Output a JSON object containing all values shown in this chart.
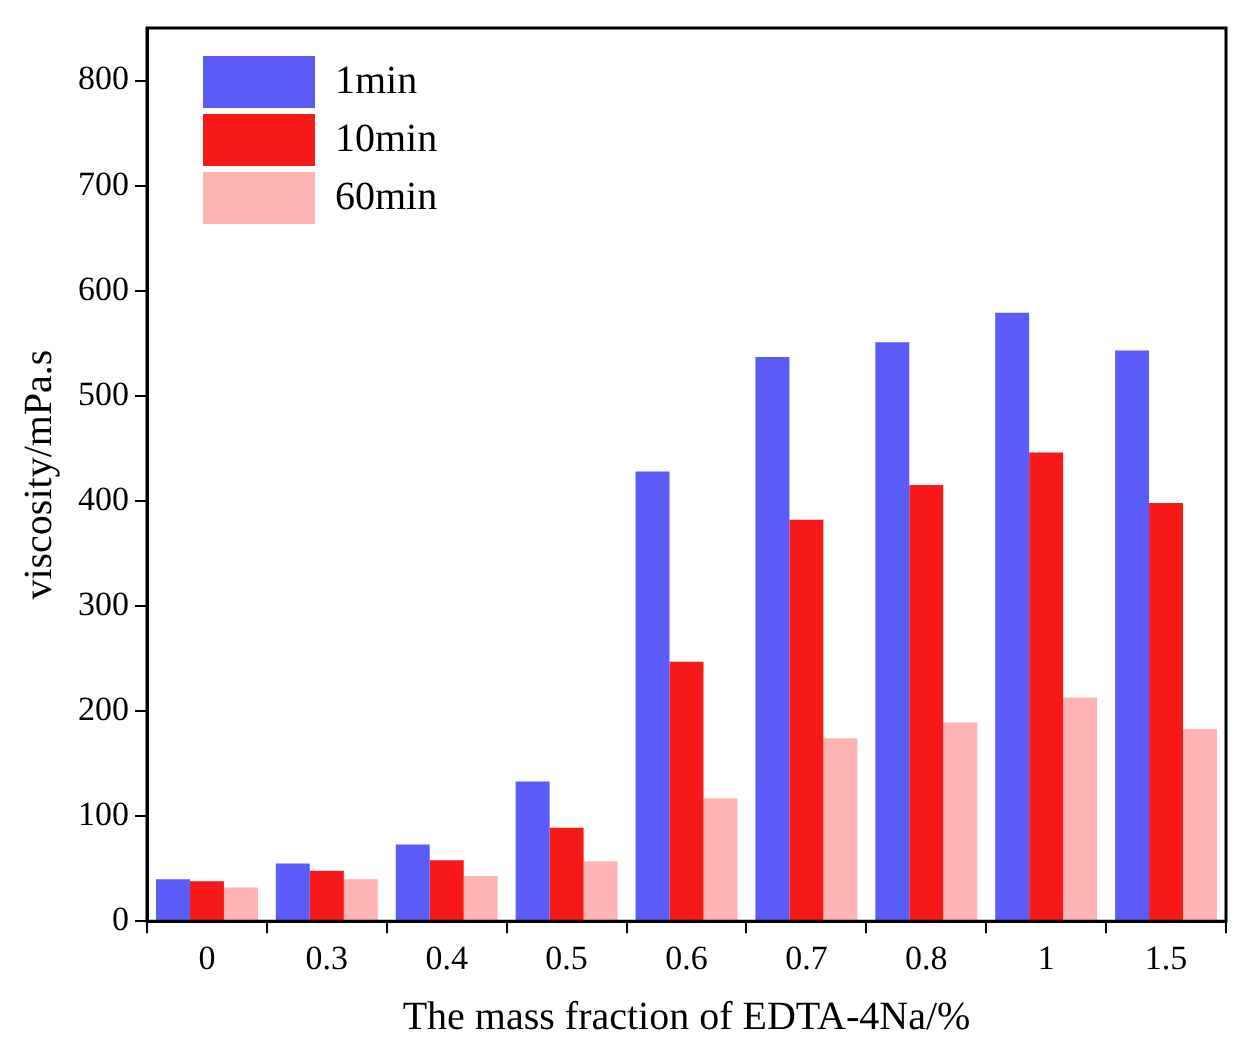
{
  "chart_data": {
    "type": "bar",
    "xlabel": "The mass fraction of EDTA-4Na/%",
    "ylabel": "viscosity/mPa.s",
    "categories": [
      "0",
      "0.3",
      "0.4",
      "0.5",
      "0.6",
      "0.7",
      "0.8",
      "1",
      "1.5"
    ],
    "series": [
      {
        "name": "1min",
        "color": "#5b5bf7",
        "values": [
          40,
          55,
          73,
          133,
          428,
          537,
          551,
          579,
          543
        ]
      },
      {
        "name": "10min",
        "color": "#f71818",
        "values": [
          38,
          48,
          58,
          89,
          247,
          382,
          415,
          446,
          398
        ]
      },
      {
        "name": "60min",
        "color": "#ffb3b3",
        "values": [
          32,
          40,
          43,
          57,
          117,
          174,
          189,
          213,
          183
        ]
      }
    ],
    "ylim": [
      0,
      850
    ],
    "yticks": [
      0,
      100,
      200,
      300,
      400,
      500,
      600,
      700,
      800
    ],
    "grid": false,
    "legend": "top left"
  }
}
